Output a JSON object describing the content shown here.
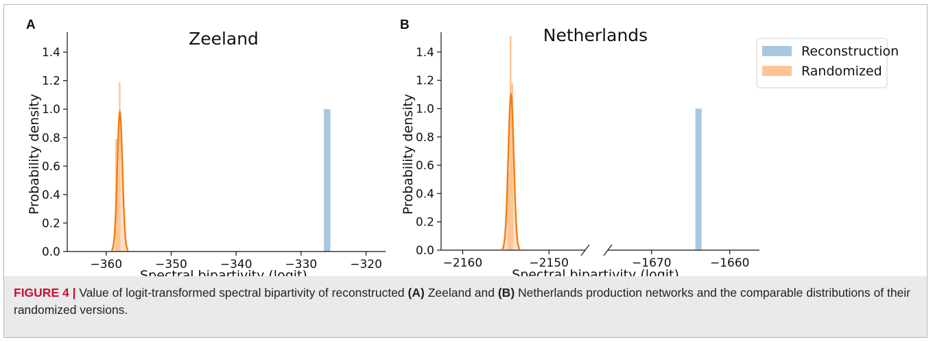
{
  "caption": {
    "figure_label": "FIGURE 4 |",
    "text_1": " Value of logit-transformed spectral bipartivity of reconstructed ",
    "bold_a": "(A)",
    "text_2": " Zeeland and ",
    "bold_b": "(B)",
    "text_3": " Netherlands production networks and the comparable distributions of their randomized versions."
  },
  "colors": {
    "reconstruction": "#a6c8e2",
    "randomized_fill": "#fdc597",
    "randomized_line": "#f57c0e"
  },
  "chart_data": [
    {
      "type": "bar",
      "panel_label": "A",
      "title": "Zeeland",
      "xlabel": "Spectral bipartivity (logit)",
      "ylabel": "Probability density",
      "xlim": [
        -366,
        -317
      ],
      "ylim": [
        0,
        1.54
      ],
      "xticks": [
        -360,
        -350,
        -340,
        -330,
        -320
      ],
      "xtick_labels": [
        "−360",
        "−350",
        "−340",
        "−330",
        "−320"
      ],
      "yticks": [
        0,
        0.2,
        0.4,
        0.6,
        0.8,
        1.0,
        1.2,
        1.4
      ],
      "ytick_labels": [
        "0.0",
        "0.2",
        "0.4",
        "0.6",
        "0.8",
        "1.0",
        "1.2",
        "1.4"
      ],
      "series": [
        {
          "name": "Reconstruction",
          "kind": "histogram",
          "bars": [
            {
              "x0": -326.5,
              "x1": -325.5,
              "y": 1.0
            }
          ]
        },
        {
          "name": "Randomized",
          "kind": "histogram",
          "bars": [
            {
              "x0": -358.6,
              "x1": -358.3,
              "y": 0.79
            },
            {
              "x0": -358.3,
              "x1": -358.05,
              "y": 0.55
            },
            {
              "x0": -358.05,
              "x1": -357.8,
              "y": 1.19
            }
          ]
        },
        {
          "name": "Randomized",
          "kind": "kde",
          "mean": -357.9,
          "sd": 0.4,
          "peak": 0.98
        }
      ]
    },
    {
      "type": "bar",
      "panel_label": "B",
      "title": "Netherlands",
      "xlabel": "Spectral bipartivity (logit)",
      "ylabel": "Probability density",
      "broken_x_axis": true,
      "xlim_left": [
        -2162.5,
        -2145.8
      ],
      "xlim_right": [
        -1675.6,
        -1656.2
      ],
      "ylim": [
        0,
        1.54
      ],
      "xticks_left": [
        -2160,
        -2150
      ],
      "xtick_labels_left": [
        "−2160",
        "−2150"
      ],
      "xticks_right": [
        -1670,
        -1660
      ],
      "xtick_labels_right": [
        "−1670",
        "−1660"
      ],
      "yticks": [
        0,
        0.2,
        0.4,
        0.6,
        0.8,
        1.0,
        1.2,
        1.4
      ],
      "ytick_labels": [
        "0.0",
        "0.2",
        "0.4",
        "0.6",
        "0.8",
        "1.0",
        "1.2",
        "1.4"
      ],
      "series": [
        {
          "name": "Reconstruction",
          "kind": "histogram",
          "bars": [
            {
              "x0": -1664.4,
              "x1": -1663.6,
              "y": 1.0
            }
          ]
        },
        {
          "name": "Randomized",
          "kind": "histogram",
          "bars": [
            {
              "x0": -2154.55,
              "x1": -2154.35,
              "y": 1.51
            },
            {
              "x0": -2154.35,
              "x1": -2154.15,
              "y": 1.18
            },
            {
              "x0": -2154.8,
              "x1": -2154.55,
              "y": 0.55
            }
          ]
        },
        {
          "name": "Randomized",
          "kind": "kde",
          "mean": -2154.4,
          "sd": 0.32,
          "peak": 1.1
        }
      ],
      "legend": {
        "placement": "top-right",
        "entries": [
          "Reconstruction",
          "Randomized"
        ]
      }
    }
  ]
}
